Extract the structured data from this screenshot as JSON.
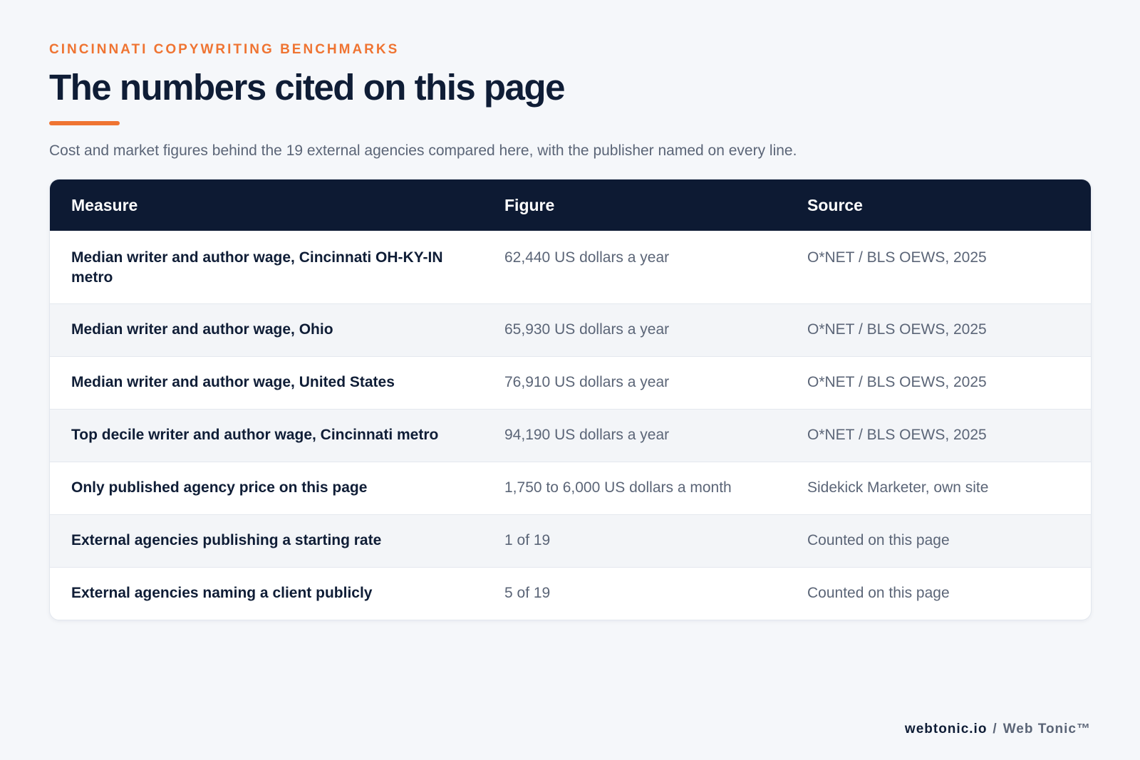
{
  "header": {
    "eyebrow": "CINCINNATI COPYWRITING BENCHMARKS",
    "title": "The numbers cited on this page",
    "subtitle": "Cost and market figures behind the 19 external agencies compared here, with the publisher named on every line."
  },
  "table": {
    "columns": [
      "Measure",
      "Figure",
      "Source"
    ],
    "rows": [
      {
        "measure": "Median writer and author wage, Cincinnati OH-KY-IN metro",
        "figure": "62,440 US dollars a year",
        "source": "O*NET / BLS OEWS, 2025"
      },
      {
        "measure": "Median writer and author wage, Ohio",
        "figure": "65,930 US dollars a year",
        "source": "O*NET / BLS OEWS, 2025"
      },
      {
        "measure": "Median writer and author wage, United States",
        "figure": "76,910 US dollars a year",
        "source": "O*NET / BLS OEWS, 2025"
      },
      {
        "measure": "Top decile writer and author wage, Cincinnati metro",
        "figure": "94,190 US dollars a year",
        "source": "O*NET / BLS OEWS, 2025"
      },
      {
        "measure": "Only published agency price on this page",
        "figure": "1,750 to 6,000 US dollars a month",
        "source": "Sidekick Marketer, own site"
      },
      {
        "measure": "External agencies publishing a starting rate",
        "figure": "1 of 19",
        "source": "Counted on this page"
      },
      {
        "measure": "External agencies naming a client publicly",
        "figure": "5 of 19",
        "source": "Counted on this page"
      }
    ]
  },
  "footer": {
    "domain": "webtonic.io",
    "separator": "/",
    "brand": "Web Tonic™"
  },
  "colors": {
    "accent": "#ef7432",
    "header_bg": "#0d1a33",
    "page_bg": "#f5f7fa"
  }
}
